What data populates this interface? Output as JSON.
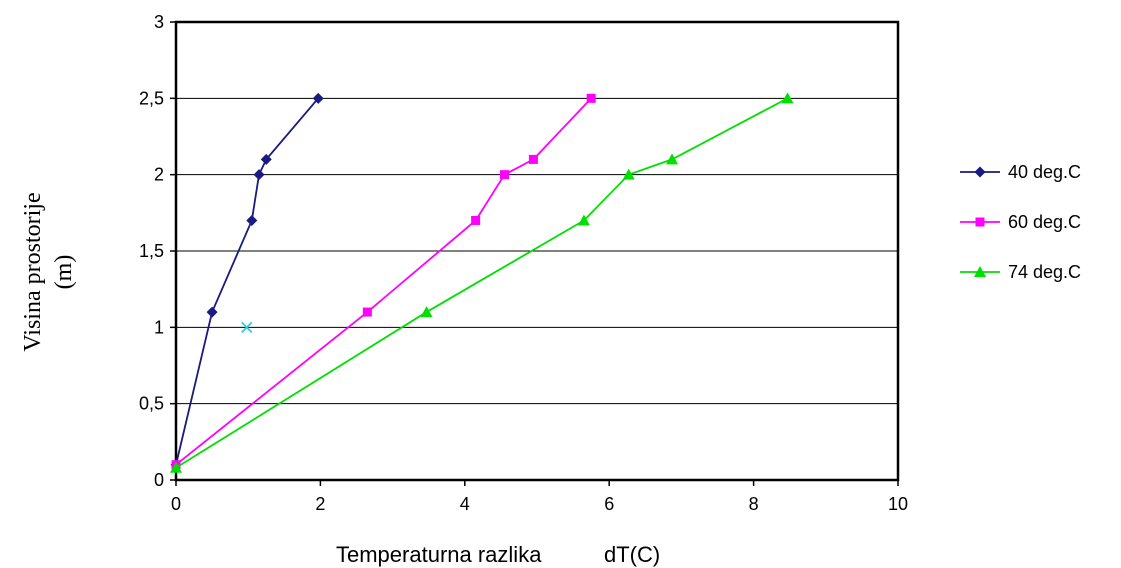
{
  "chart_data": {
    "type": "line",
    "xlabel": "Temperaturna razlika",
    "xlabel_unit": "dT(C)",
    "ylabel_lines": [
      "Visina prostorije",
      "(m)"
    ],
    "xlim": [
      0,
      10
    ],
    "ylim": [
      0,
      3
    ],
    "x_ticks": [
      "0",
      "2",
      "4",
      "6",
      "8",
      "10"
    ],
    "y_ticks": [
      "0",
      "0,5",
      "1",
      "1,5",
      "2",
      "2,5",
      "3"
    ],
    "grid": "horizontal",
    "legend_position": "right",
    "series": [
      {
        "name": "40 deg.C",
        "color": "#1a1a80",
        "marker": "diamond",
        "points": [
          [
            0,
            0.1
          ],
          [
            0.5,
            1.1
          ],
          [
            1.05,
            1.7
          ],
          [
            1.15,
            2.0
          ],
          [
            1.25,
            2.1
          ],
          [
            1.97,
            2.5
          ]
        ]
      },
      {
        "name": "60 deg.C",
        "color": "#ff00ff",
        "marker": "square",
        "points": [
          [
            0,
            0.1
          ],
          [
            2.65,
            1.1
          ],
          [
            4.15,
            1.7
          ],
          [
            4.55,
            2.0
          ],
          [
            4.95,
            2.1
          ],
          [
            5.75,
            2.5
          ]
        ]
      },
      {
        "name": "74 deg.C",
        "color": "#00e000",
        "marker": "triangle",
        "points": [
          [
            0,
            0.08
          ],
          [
            3.47,
            1.1
          ],
          [
            5.65,
            1.7
          ],
          [
            6.27,
            2.0
          ],
          [
            6.87,
            2.1
          ],
          [
            8.47,
            2.5
          ]
        ]
      }
    ],
    "extra_markers": [
      {
        "x": 0.98,
        "y": 1.0,
        "marker": "x",
        "color": "#33ccdd"
      }
    ]
  }
}
